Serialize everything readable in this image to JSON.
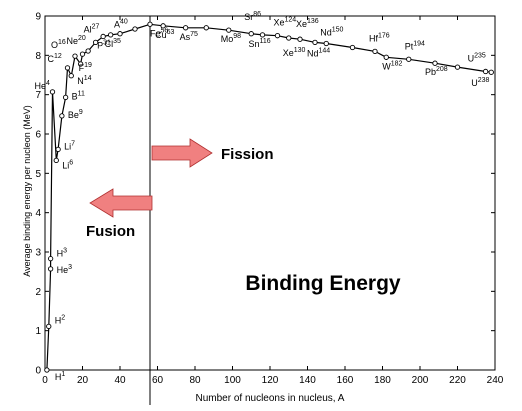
{
  "figure": {
    "title": "Binding Energy",
    "fission_label": "Fission",
    "fusion_label": "Fusion",
    "arrow_color": "#f08080",
    "arrow_border": "#b03030"
  },
  "chart_data": {
    "type": "line",
    "title": "Binding Energy",
    "xlabel": "Number of nucleons in nucleus, A",
    "ylabel": "Average binding energy per nucleon (MeV)",
    "xlim": [
      0,
      240
    ],
    "ylim": [
      0,
      9
    ],
    "x_ticks": [
      "0",
      "20",
      "40",
      "60",
      "80",
      "100",
      "120",
      "140",
      "160",
      "180",
      "200",
      "220",
      "240"
    ],
    "y_ticks": [
      "0",
      "1",
      "2",
      "3",
      "4",
      "5",
      "6",
      "7",
      "8",
      "9"
    ],
    "grid": false,
    "divider_x": 56,
    "series": [
      {
        "x": [
          1,
          2,
          3,
          3,
          4,
          6,
          7,
          9,
          11,
          12,
          14,
          16,
          19,
          20,
          23,
          27,
          31,
          35,
          40,
          48,
          56,
          63,
          75,
          86,
          98,
          110,
          116,
          124,
          130,
          136,
          144,
          150,
          164,
          176,
          182,
          194,
          208,
          220,
          235,
          238
        ],
        "y": [
          0.0,
          1.11,
          2.57,
          2.83,
          7.07,
          5.33,
          5.61,
          6.46,
          6.93,
          7.68,
          7.48,
          7.98,
          7.78,
          8.03,
          8.11,
          8.33,
          8.48,
          8.52,
          8.55,
          8.67,
          8.79,
          8.75,
          8.7,
          8.7,
          8.64,
          8.55,
          8.52,
          8.5,
          8.44,
          8.41,
          8.33,
          8.3,
          8.2,
          8.1,
          7.95,
          7.9,
          7.8,
          7.7,
          7.59,
          7.57
        ]
      }
    ],
    "annotations": [
      {
        "text": "H",
        "sup": "1",
        "x": 1,
        "y": 0.0
      },
      {
        "text": "H",
        "sup": "2",
        "x": 2,
        "y": 1.11
      },
      {
        "text": "He",
        "sup": "3",
        "x": 3,
        "y": 2.57
      },
      {
        "text": "H",
        "sup": "3",
        "x": 3,
        "y": 2.83
      },
      {
        "text": "He",
        "sup": "4",
        "x": 4,
        "y": 7.07
      },
      {
        "text": "Li",
        "sup": "6",
        "x": 6,
        "y": 5.33
      },
      {
        "text": "Li",
        "sup": "7",
        "x": 7,
        "y": 5.61
      },
      {
        "text": "Be",
        "sup": "9",
        "x": 9,
        "y": 6.46
      },
      {
        "text": "B",
        "sup": "11",
        "x": 11,
        "y": 6.93
      },
      {
        "text": "C",
        "sup": "12",
        "x": 12,
        "y": 7.68
      },
      {
        "text": "N",
        "sup": "14",
        "x": 14,
        "y": 7.48
      },
      {
        "text": "O",
        "sup": "16",
        "x": 16,
        "y": 7.98
      },
      {
        "text": "F",
        "sup": "19",
        "x": 19,
        "y": 7.78
      },
      {
        "text": "Ne",
        "sup": "20",
        "x": 20,
        "y": 8.03
      },
      {
        "text": "Al",
        "sup": "27",
        "x": 27,
        "y": 8.33
      },
      {
        "text": "P",
        "sup": "31",
        "x": 31,
        "y": 8.48
      },
      {
        "text": "Cl",
        "sup": "35",
        "x": 35,
        "y": 8.52
      },
      {
        "text": "A",
        "sup": "40",
        "x": 40,
        "y": 8.55
      },
      {
        "text": "Fe",
        "sup": "56",
        "x": 56,
        "y": 8.79
      },
      {
        "text": "Cu",
        "sup": "63",
        "x": 63,
        "y": 8.75
      },
      {
        "text": "As",
        "sup": "75",
        "x": 75,
        "y": 8.7
      },
      {
        "text": "Sr",
        "sup": "86",
        "x": 86,
        "y": 8.7
      },
      {
        "text": "Mo",
        "sup": "98",
        "x": 98,
        "y": 8.64
      },
      {
        "text": "Sn",
        "sup": "116",
        "x": 116,
        "y": 8.52
      },
      {
        "text": "Xe",
        "sup": "124",
        "x": 124,
        "y": 8.5
      },
      {
        "text": "Xe",
        "sup": "130",
        "x": 130,
        "y": 8.44
      },
      {
        "text": "Xe",
        "sup": "136",
        "x": 136,
        "y": 8.41
      },
      {
        "text": "Nd",
        "sup": "144",
        "x": 144,
        "y": 8.33
      },
      {
        "text": "Nd",
        "sup": "150",
        "x": 150,
        "y": 8.3
      },
      {
        "text": "Hf",
        "sup": "176",
        "x": 176,
        "y": 8.1
      },
      {
        "text": "W",
        "sup": "182",
        "x": 182,
        "y": 7.95
      },
      {
        "text": "Pt",
        "sup": "194",
        "x": 194,
        "y": 7.9
      },
      {
        "text": "Pb",
        "sup": "208",
        "x": 208,
        "y": 7.8
      },
      {
        "text": "U",
        "sup": "235",
        "x": 235,
        "y": 7.59
      },
      {
        "text": "U",
        "sup": "238",
        "x": 238,
        "y": 7.57
      }
    ]
  }
}
